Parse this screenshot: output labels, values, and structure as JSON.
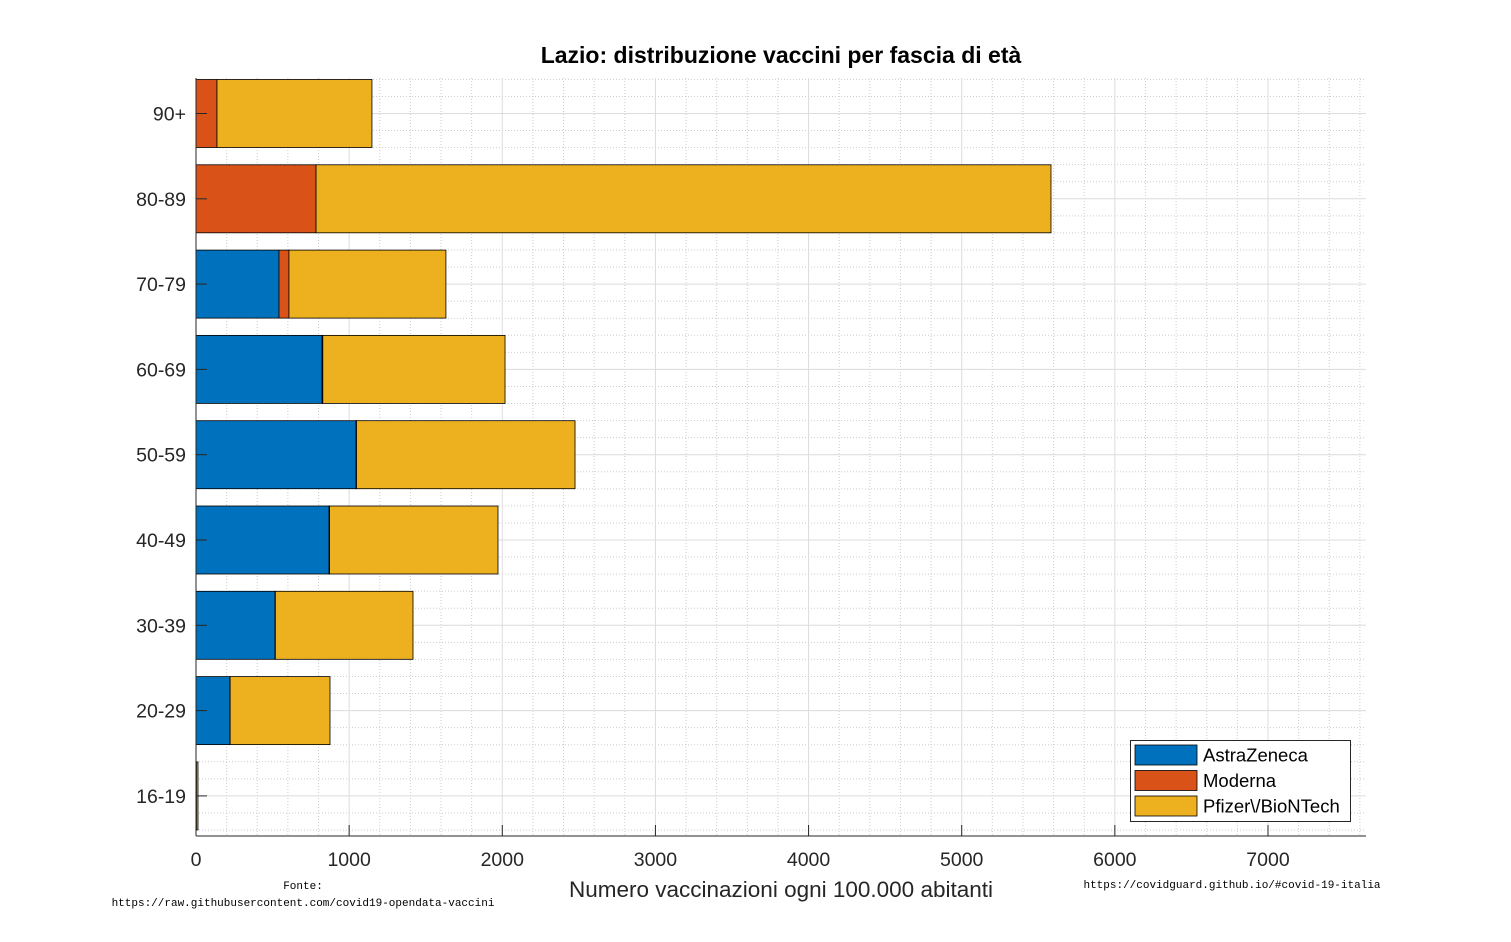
{
  "chart_data": {
    "type": "bar",
    "orientation": "horizontal",
    "stacked": true,
    "title": "Lazio: distribuzione vaccini per fascia di età",
    "xlabel": "Numero vaccinazioni ogni 100.000 abitanti",
    "xlim": [
      0,
      7640
    ],
    "xticks": [
      0,
      1000,
      2000,
      3000,
      4000,
      5000,
      6000,
      7000
    ],
    "categories": [
      "90+",
      "80-89",
      "70-79",
      "60-69",
      "50-59",
      "40-49",
      "30-39",
      "20-29",
      "16-19"
    ],
    "series": [
      {
        "name": "AstraZeneca",
        "color": "#0072BD",
        "values": [
          0,
          0,
          542,
          823,
          1045,
          869,
          516,
          222,
          0
        ]
      },
      {
        "name": "Moderna",
        "color": "#D95319",
        "values": [
          137,
          784,
          65,
          5,
          3,
          3,
          2,
          1,
          3
        ]
      },
      {
        "name": "Pfizer\\/BioNTech",
        "color": "#EDB120",
        "values": [
          1012,
          4799,
          1025,
          1190,
          1427,
          1100,
          899,
          652,
          10
        ]
      }
    ],
    "grid": {
      "major": true,
      "minor": true
    },
    "legend_position": "bottom-right",
    "annotations": {
      "source_label": "Fonte:",
      "source_url": "https://raw.githubusercontent.com/covid19-opendata-vaccini",
      "site_url": "https://covidguard.github.io/#covid-19-italia"
    }
  }
}
